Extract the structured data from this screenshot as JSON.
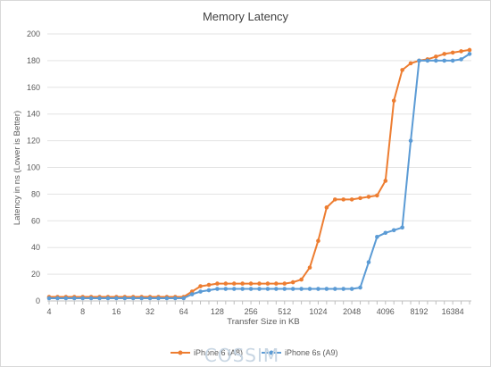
{
  "chart_data": {
    "type": "line",
    "title": "Memory Latency",
    "xlabel": "Transfer Size in KB",
    "ylabel": "Latency in ns (Lower is Better)",
    "ylim": [
      0,
      200
    ],
    "yticks": [
      0,
      20,
      40,
      60,
      80,
      100,
      120,
      140,
      160,
      180,
      200
    ],
    "xtick_labels": [
      "4",
      "8",
      "16",
      "32",
      "64",
      "128",
      "256",
      "512",
      "1024",
      "2048",
      "4096",
      "8192",
      "16384"
    ],
    "grid": true,
    "legend_position": "bottom",
    "categories": [
      "4",
      "5",
      "6",
      "7",
      "8",
      "10",
      "12",
      "14",
      "16",
      "20",
      "24",
      "28",
      "32",
      "40",
      "48",
      "56",
      "64",
      "80",
      "96",
      "112",
      "128",
      "160",
      "192",
      "224",
      "256",
      "320",
      "384",
      "448",
      "512",
      "640",
      "768",
      "896",
      "1024",
      "1280",
      "1536",
      "1792",
      "2048",
      "2560",
      "3072",
      "3584",
      "4096",
      "5120",
      "6144",
      "7168",
      "8192",
      "10240",
      "12288",
      "14336",
      "16384",
      "20480",
      "24576"
    ],
    "series": [
      {
        "name": "iPhone 6 (A8)",
        "color": "#ed7d31",
        "values": [
          3,
          3,
          3,
          3,
          3,
          3,
          3,
          3,
          3,
          3,
          3,
          3,
          3,
          3,
          3,
          3,
          3,
          7,
          11,
          12,
          13,
          13,
          13,
          13,
          13,
          13,
          13,
          13,
          13,
          14,
          16,
          25,
          45,
          70,
          76,
          76,
          76,
          77,
          78,
          79,
          90,
          150,
          173,
          178,
          180,
          181,
          183,
          185,
          186,
          187,
          188
        ]
      },
      {
        "name": "iPhone 6s (A9)",
        "color": "#5b9bd5",
        "values": [
          2,
          2,
          2,
          2,
          2,
          2,
          2,
          2,
          2,
          2,
          2,
          2,
          2,
          2,
          2,
          2,
          2,
          5,
          7,
          8,
          9,
          9,
          9,
          9,
          9,
          9,
          9,
          9,
          9,
          9,
          9,
          9,
          9,
          9,
          9,
          9,
          9,
          10,
          29,
          48,
          51,
          53,
          55,
          120,
          180,
          180,
          180,
          180,
          180,
          181,
          185
        ]
      }
    ]
  },
  "watermark": "COSSIM"
}
